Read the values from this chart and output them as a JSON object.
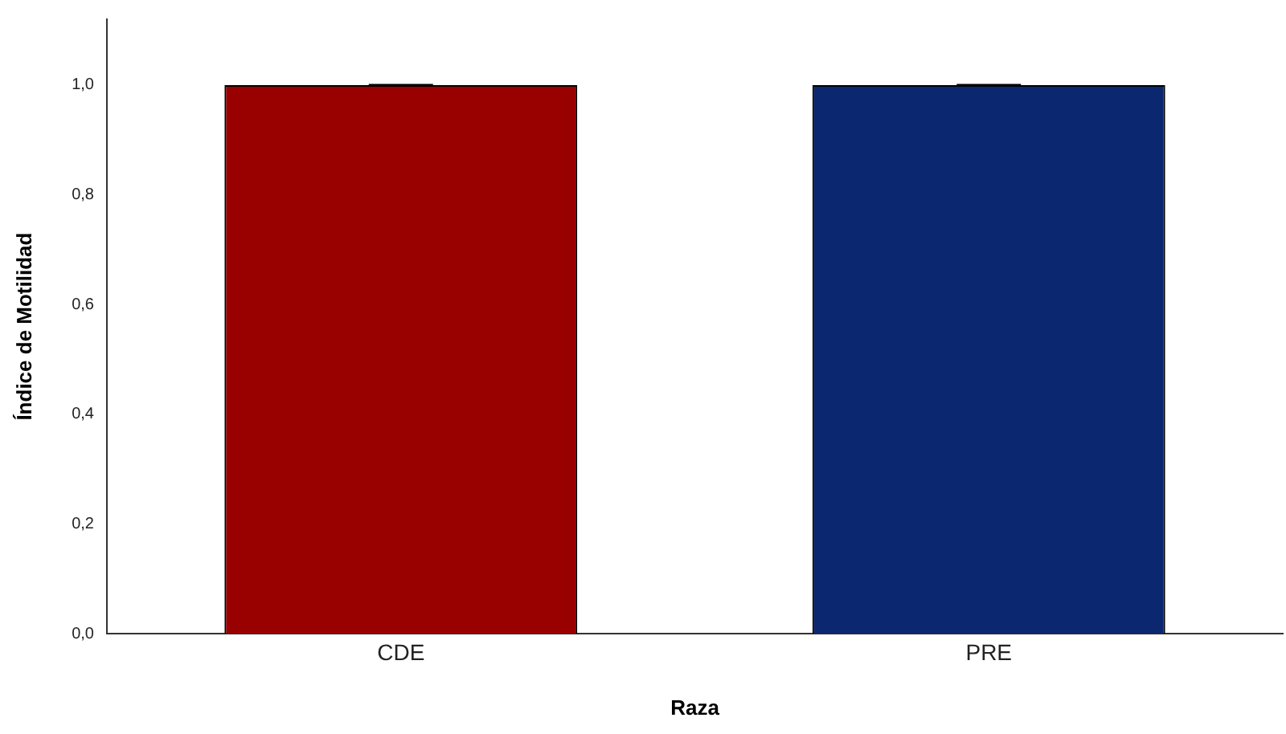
{
  "chart_data": {
    "type": "bar",
    "xlabel": "Raza",
    "ylabel": "Índice de Motilidad",
    "categories": [
      "CDE",
      "PRE"
    ],
    "values": [
      1.0,
      1.0
    ],
    "colors": [
      "#990000",
      "#0b2770"
    ],
    "errors": [
      0,
      0
    ],
    "ylim": [
      0,
      1.12
    ],
    "yticks": [
      {
        "value": 0,
        "label": "0,0"
      },
      {
        "value": 0.2,
        "label": "0,2"
      },
      {
        "value": 0.4,
        "label": "0,4"
      },
      {
        "value": 0.6,
        "label": "0,6"
      },
      {
        "value": 0.8,
        "label": "0,8"
      },
      {
        "value": 1.0,
        "label": "1,0"
      }
    ],
    "grid": false,
    "legend": false
  }
}
